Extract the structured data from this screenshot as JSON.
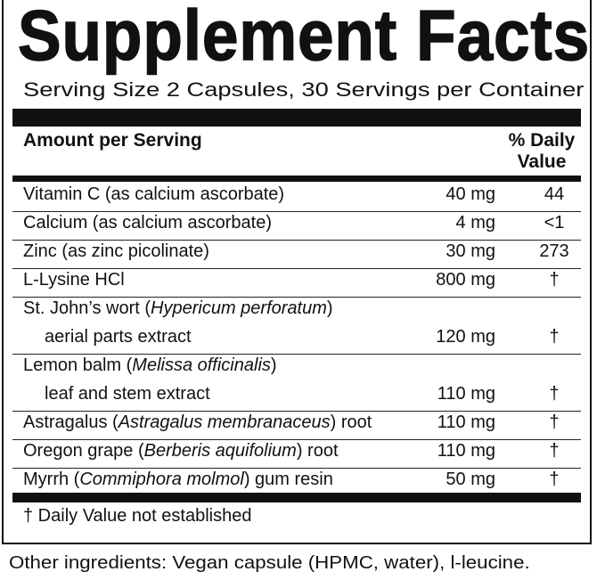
{
  "title": "Supplement Facts",
  "serving": "Serving Size 2 Capsules, 30 Servings per Container",
  "header": {
    "amount": "Amount per Serving",
    "dv_line1": "% Daily",
    "dv_line2": "Value"
  },
  "rows": [
    {
      "name": [
        {
          "t": "Vitamin C (as calcium ascorbate)"
        }
      ],
      "amount": "40 mg",
      "dv": "44"
    },
    {
      "name": [
        {
          "t": "Calcium (as calcium ascorbate)"
        }
      ],
      "amount": "4 mg",
      "dv": "<1"
    },
    {
      "name": [
        {
          "t": "Zinc (as zinc picolinate)"
        }
      ],
      "amount": "30 mg",
      "dv": "273"
    },
    {
      "name": [
        {
          "t": "L-Lysine HCl"
        }
      ],
      "amount": "800 mg",
      "dv": "†"
    },
    {
      "name": [
        {
          "t": "St. John’s wort ("
        },
        {
          "t": "Hypericum perforatum",
          "i": true
        },
        {
          "t": ")"
        }
      ],
      "line2": "aerial parts extract",
      "amount": "120 mg",
      "dv": "†"
    },
    {
      "name": [
        {
          "t": "Lemon balm ("
        },
        {
          "t": "Melissa officinalis",
          "i": true
        },
        {
          "t": ")"
        }
      ],
      "line2": "leaf and stem extract",
      "amount": "110 mg",
      "dv": "†"
    },
    {
      "name": [
        {
          "t": "Astragalus ("
        },
        {
          "t": "Astragalus membranaceus",
          "i": true
        },
        {
          "t": ") root"
        }
      ],
      "amount": "110 mg",
      "dv": "†"
    },
    {
      "name": [
        {
          "t": "Oregon grape ("
        },
        {
          "t": "Berberis aquifolium",
          "i": true
        },
        {
          "t": ") root"
        }
      ],
      "amount": "110 mg",
      "dv": "†"
    },
    {
      "name": [
        {
          "t": "Myrrh ("
        },
        {
          "t": "Commiphora molmol",
          "i": true
        },
        {
          "t": ") gum resin"
        }
      ],
      "amount": "50 mg",
      "dv": "†"
    }
  ],
  "footnote": "† Daily Value not established",
  "other_ingredients": "Other ingredients: Vegan capsule (HPMC, water), l-leucine."
}
